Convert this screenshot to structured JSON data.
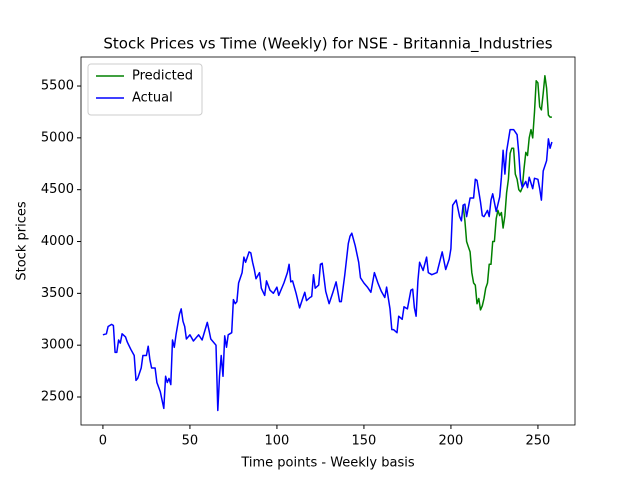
{
  "chart_data": {
    "type": "line",
    "title": "Stock Prices vs Time (Weekly) for NSE - Britannia_Industries",
    "x_label": "Time points - Weekly basis",
    "y_label": "Stock prices",
    "xlim": [
      -12.6,
      271.3
    ],
    "ylim": [
      2230,
      5780
    ],
    "xticks": [
      0,
      50,
      100,
      150,
      200,
      250
    ],
    "yticks": [
      2500,
      3000,
      3500,
      4000,
      4500,
      5000,
      5500
    ],
    "legend": "upper left",
    "series": [
      {
        "name": "Predicted",
        "color": "#008000",
        "x": [
          207,
          208,
          209,
          210,
          211,
          212,
          213,
          214,
          215,
          216,
          217,
          218,
          219,
          220,
          221,
          222,
          223,
          224,
          225,
          226,
          227,
          228,
          229,
          230,
          231,
          232,
          233,
          234,
          235,
          236,
          237,
          238,
          239,
          240,
          241,
          242,
          243,
          244,
          245,
          246,
          247,
          248,
          249,
          250,
          251,
          252,
          253,
          254,
          255,
          256,
          257,
          258
        ],
        "values": [
          4350,
          4200,
          4000,
          3950,
          3900,
          3700,
          3600,
          3580,
          3400,
          3450,
          3340,
          3380,
          3450,
          3550,
          3600,
          3780,
          3780,
          4000,
          4000,
          4220,
          4300,
          4250,
          4280,
          4130,
          4250,
          4470,
          4600,
          4850,
          4900,
          4900,
          4650,
          4600,
          4500,
          4480,
          4520,
          4700,
          4860,
          4830,
          5000,
          5080,
          5000,
          5250,
          5550,
          5530,
          5300,
          5270,
          5430,
          5600,
          5480,
          5220,
          5200,
          5200
        ]
      },
      {
        "name": "Actual",
        "color": "#0000ff",
        "x": [
          0,
          2,
          3,
          5,
          6,
          7,
          8,
          9,
          10,
          11,
          13,
          14,
          16,
          18,
          19,
          20,
          22,
          23,
          25,
          26,
          27,
          28,
          30,
          31,
          33,
          35,
          36,
          37,
          38,
          39,
          40,
          41,
          42,
          44,
          45,
          46,
          47,
          48,
          50,
          52,
          55,
          57,
          60,
          61,
          62,
          65,
          66,
          67,
          68,
          69,
          70,
          71,
          72,
          74,
          75,
          76,
          77,
          78,
          80,
          81,
          82,
          84,
          85,
          86,
          87,
          88,
          90,
          91,
          93,
          94,
          96,
          98,
          100,
          101,
          104,
          106,
          107,
          108,
          109,
          111,
          113,
          115,
          116,
          117,
          119,
          120,
          121,
          122,
          124,
          125,
          126,
          128,
          130,
          132,
          134,
          136,
          137,
          139,
          141,
          142,
          143,
          145,
          147,
          148,
          150,
          152,
          154,
          156,
          158,
          160,
          162,
          163,
          165,
          166,
          167,
          169,
          170,
          172,
          173,
          175,
          177,
          178,
          179,
          180,
          181,
          182,
          184,
          186,
          187,
          189,
          192,
          195,
          197,
          199,
          200,
          201,
          203,
          205,
          206,
          207,
          208,
          209,
          211,
          213,
          214,
          215,
          217,
          218,
          219,
          221,
          222,
          223,
          224,
          226,
          228,
          229,
          230,
          231,
          232,
          234,
          236,
          238,
          239,
          240,
          241,
          243,
          244,
          245,
          247,
          248,
          250,
          251,
          252,
          253,
          255,
          256,
          257,
          258
        ],
        "values": [
          3100,
          3110,
          3180,
          3200,
          3190,
          2930,
          2930,
          3050,
          3020,
          3110,
          3080,
          3030,
          2960,
          2900,
          2660,
          2680,
          2780,
          2900,
          2900,
          2990,
          2860,
          2780,
          2780,
          2640,
          2550,
          2390,
          2700,
          2640,
          2680,
          2620,
          3050,
          2980,
          3100,
          3300,
          3350,
          3230,
          3180,
          3060,
          3100,
          3040,
          3100,
          3050,
          3220,
          3140,
          3060,
          3000,
          2370,
          2700,
          2900,
          2700,
          3090,
          2980,
          3100,
          3120,
          3440,
          3400,
          3420,
          3600,
          3700,
          3850,
          3800,
          3900,
          3890,
          3800,
          3730,
          3640,
          3700,
          3550,
          3480,
          3620,
          3530,
          3500,
          3560,
          3480,
          3600,
          3700,
          3780,
          3610,
          3620,
          3500,
          3360,
          3460,
          3510,
          3430,
          3460,
          3470,
          3680,
          3550,
          3580,
          3780,
          3790,
          3520,
          3400,
          3500,
          3610,
          3420,
          3420,
          3680,
          3980,
          4050,
          4080,
          3960,
          3800,
          3650,
          3600,
          3560,
          3510,
          3700,
          3600,
          3520,
          3460,
          3560,
          3350,
          3150,
          3150,
          3120,
          3280,
          3250,
          3370,
          3350,
          3530,
          3540,
          3360,
          3280,
          3620,
          3800,
          3720,
          3850,
          3700,
          3680,
          3700,
          3900,
          3730,
          3830,
          3930,
          4350,
          4400,
          4240,
          4200,
          4350,
          4360,
          4240,
          4420,
          4420,
          4600,
          4590,
          4380,
          4250,
          4240,
          4300,
          4240,
          4400,
          4460,
          4290,
          4430,
          4620,
          4880,
          4650,
          4870,
          5080,
          5080,
          5030,
          4850,
          4600,
          4520,
          4580,
          4520,
          4620,
          4510,
          4610,
          4600,
          4510,
          4400,
          4680,
          4780,
          4990,
          4900,
          4960
        ]
      }
    ]
  }
}
